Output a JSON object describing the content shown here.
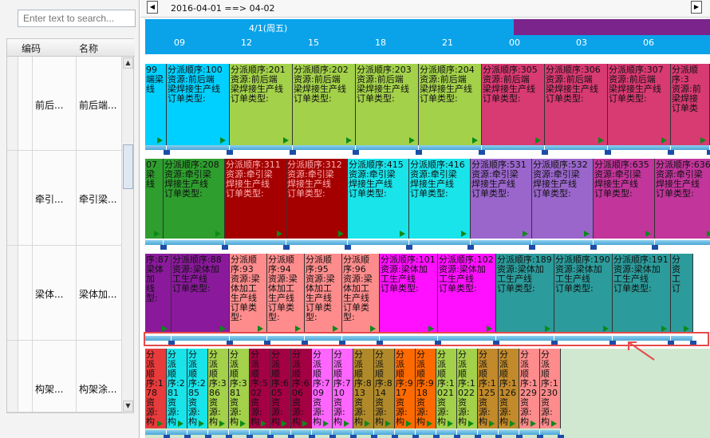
{
  "search": {
    "placeholder": "Enter text to search..."
  },
  "table": {
    "headers": {
      "code": "编码",
      "name": "名称"
    },
    "rows": [
      {
        "code": "前后...",
        "name": "前后端..."
      },
      {
        "code": "牵引...",
        "name": "牵引梁..."
      },
      {
        "code": "梁体...",
        "name": "梁体加..."
      },
      {
        "code": "构架...",
        "name": "构架涂..."
      }
    ]
  },
  "toolbar": {
    "range": "2016-04-01 ==> 04-02",
    "prev_icon": "◀",
    "next_icon": "▶"
  },
  "timeline": {
    "day1": "4/1(周五)",
    "hours": [
      "09",
      "12",
      "15",
      "18",
      "21",
      "00",
      "03",
      "06"
    ]
  },
  "lanes": [
    {
      "blocks": [
        {
          "text": "99\n端梁\n线",
          "color": "#00d0ff"
        },
        {
          "text": "分派顺序:100\n资源:前后端\n梁焊接生产线\n订单类型:",
          "color": "#00d0ff"
        },
        {
          "text": "分派顺序:201\n资源:前后端\n梁焊接生产线\n订单类型:",
          "color": "#a3d14a"
        },
        {
          "text": "分派顺序:202\n资源:前后端\n梁焊接生产线\n订单类型:",
          "color": "#a3d14a"
        },
        {
          "text": "分派顺序:203\n资源:前后端\n梁焊接生产线\n订单类型:",
          "color": "#a3d14a"
        },
        {
          "text": "分派顺序:204\n资源:前后端\n梁焊接生产线\n订单类型:",
          "color": "#a3d14a"
        },
        {
          "text": "分派顺序:305\n资源:前后端\n梁焊接生产线\n订单类型:",
          "color": "#d83a72"
        },
        {
          "text": "分派顺序:306\n资源:前后端\n梁焊接生产线\n订单类型:",
          "color": "#d83a72"
        },
        {
          "text": "分派顺序:307\n资源:前后端\n梁焊接生产线\n订单类型:",
          "color": "#d83a72"
        },
        {
          "text": "分派顺序:3\n资源:前\n梁焊接\n订单类",
          "color": "#d83a72"
        }
      ]
    },
    {
      "blocks": [
        {
          "text": "07\n梁\n线",
          "color": "#2e9e2e"
        },
        {
          "text": "分派顺序:208\n资源:牵引梁\n焊接生产线\n订单类型:",
          "color": "#2e9e2e"
        },
        {
          "text": "分派顺序:311\n资源:牵引梁\n焊接生产线\n订单类型:",
          "color": "#a40000"
        },
        {
          "text": "分派顺序:312\n资源:牵引梁\n焊接生产线\n订单类型:",
          "color": "#a40000"
        },
        {
          "text": "分派顺序:415\n资源:牵引梁\n焊接生产线\n订单类型:",
          "color": "#18e4ea"
        },
        {
          "text": "分派顺序:416\n资源:牵引梁\n焊接生产线\n订单类型:",
          "color": "#18e4ea"
        },
        {
          "text": "分派顺序:531\n资源:牵引梁\n焊接生产线\n订单类型:",
          "color": "#9a66cc"
        },
        {
          "text": "分派顺序:532\n资源:牵引梁\n焊接生产线\n订单类型:",
          "color": "#9a66cc"
        },
        {
          "text": "分派顺序:635\n资源:牵引梁\n焊接生产线\n订单类型:",
          "color": "#c2359b"
        },
        {
          "text": "分派顺序:636\n资源:牵引梁\n焊接生产线\n订单类型:",
          "color": "#c2359b"
        }
      ]
    },
    {
      "blocks": [
        {
          "text": "序:87\n梁体加\n线\n型:",
          "color": "#8a1a9b"
        },
        {
          "text": "分派顺序:88\n资源:梁体加\n工生产线\n订单类型:",
          "color": "#8a1a9b"
        },
        {
          "text": "分派顺\n序:93\n资源:梁\n体加工\n生产线\n订单类\n型:",
          "color": "#ff8c8c"
        },
        {
          "text": "分派顺\n序:94\n资源:梁\n体加工\n生产线\n订单类\n型:",
          "color": "#ff8c8c"
        },
        {
          "text": "分派顺\n序:95\n资源:梁\n体加工\n生产线\n订单类\n型:",
          "color": "#ff8c8c"
        },
        {
          "text": "分派顺\n序:96\n资源:梁\n体加工\n生产线\n订单类\n型:",
          "color": "#ff8c8c"
        },
        {
          "text": "分派顺序:101\n资源:梁体加\n工生产线\n订单类型:",
          "color": "#ff10ff"
        },
        {
          "text": "分派顺序:102\n资源:梁体加\n工生产线\n订单类型:",
          "color": "#ff10ff"
        },
        {
          "text": "分派顺序:189\n资源:梁体加\n工生产线\n订单类型:",
          "color": "#2c9b9b"
        },
        {
          "text": "分派顺序:190\n资源:梁体加\n工生产线\n订单类型:",
          "color": "#2c9b9b"
        },
        {
          "text": "分派顺序:191\n资源:梁体加\n工生产线\n订单类型:",
          "color": "#2c9b9b"
        },
        {
          "text": "分\n资\n工\n订",
          "color": "#2c9b9b"
        }
      ]
    },
    {
      "blocks": [
        {
          "text": "分\n派\n顺\n序:1\n78\n资\n源:\n构",
          "color": "#e83b3b"
        },
        {
          "text": "分\n派\n顺\n序:2\n81\n资\n源:\n构",
          "color": "#18e4ea"
        },
        {
          "text": "分\n派\n顺\n序:2\n85\n资\n源:\n构",
          "color": "#18e4ea"
        },
        {
          "text": "分\n派\n顺\n序:3\n86\n资\n源:\n构",
          "color": "#a3d14a"
        },
        {
          "text": "分\n派\n顺\n序:3\n81\n资\n源:\n构",
          "color": "#a3d14a"
        },
        {
          "text": "分\n派\n顺\n序:5\n02\n资\n源:\n构",
          "color": "#a40044"
        },
        {
          "text": "分\n派\n顺\n序:6\n05\n资\n源:\n构",
          "color": "#a40044"
        },
        {
          "text": "分\n派\n顺\n序:6\n06\n资\n源:\n构",
          "color": "#a40044"
        },
        {
          "text": "分\n派\n顺\n序:7\n09\n资\n源:\n构",
          "color": "#ff66ff"
        },
        {
          "text": "分\n派\n顺\n序:7\n10\n资\n源:\n构",
          "color": "#ff66ff"
        },
        {
          "text": "分\n派\n顺\n序:8\n13\n资\n源:\n构",
          "color": "#b08a2a"
        },
        {
          "text": "分\n派\n顺\n序:8\n14\n资\n源:\n构",
          "color": "#b08a2a"
        },
        {
          "text": "分\n派\n顺\n序:9\n17\n资\n源:\n构",
          "color": "#ff6a00"
        },
        {
          "text": "分\n派\n顺\n序:9\n18\n资\n源:\n构",
          "color": "#ff6a00"
        },
        {
          "text": "分\n派\n顺\n序:1\n021\n资\n源:\n构",
          "color": "#a3d14a"
        },
        {
          "text": "分\n派\n顺\n序:1\n022\n资\n源:\n构",
          "color": "#a3d14a"
        },
        {
          "text": "分\n派\n顺\n序:1\n125\n资\n源:\n构",
          "color": "#c28a2a"
        },
        {
          "text": "分\n派\n顺\n序:1\n126\n资\n源:\n构",
          "color": "#c28a2a"
        },
        {
          "text": "分\n派\n顺\n序:1\n229\n资\n源:\n构",
          "color": "#ff8c8c"
        },
        {
          "text": "分\n派\n顺\n序:1\n230\n资\n源:\n构",
          "color": "#ff8c8c"
        }
      ]
    }
  ]
}
